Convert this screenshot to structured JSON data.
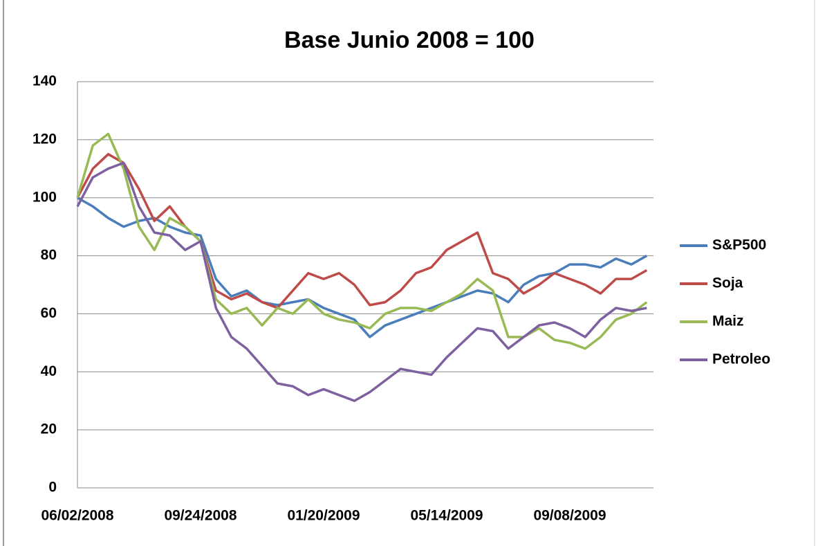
{
  "chart_data": {
    "type": "line",
    "title": "Base Junio 2008 = 100",
    "categories": [
      "06/02/2008",
      null,
      null,
      null,
      null,
      null,
      null,
      null,
      "09/24/2008",
      null,
      null,
      null,
      null,
      null,
      null,
      null,
      "01/20/2009",
      null,
      null,
      null,
      null,
      null,
      null,
      null,
      "05/14/2009",
      null,
      null,
      null,
      null,
      null,
      null,
      null,
      "09/08/2009",
      null,
      null,
      null,
      null,
      null
    ],
    "series": [
      {
        "name": "S&P500",
        "color": "#4a7ebb",
        "values": [
          100,
          97,
          93,
          90,
          92,
          93,
          90,
          88,
          87,
          72,
          66,
          68,
          64,
          63,
          64,
          65,
          62,
          60,
          58,
          52,
          56,
          58,
          60,
          62,
          64,
          66,
          68,
          67,
          64,
          70,
          73,
          74,
          77,
          77,
          76,
          79,
          77,
          80
        ]
      },
      {
        "name": "Soja",
        "color": "#be4b48",
        "values": [
          100,
          110,
          115,
          112,
          103,
          92,
          97,
          90,
          85,
          68,
          65,
          67,
          64,
          62,
          68,
          74,
          72,
          74,
          70,
          63,
          64,
          68,
          74,
          76,
          82,
          85,
          88,
          74,
          72,
          67,
          70,
          74,
          72,
          70,
          67,
          72,
          72,
          75
        ]
      },
      {
        "name": "Maiz",
        "color": "#98b954",
        "values": [
          100,
          118,
          122,
          110,
          90,
          82,
          93,
          90,
          85,
          65,
          60,
          62,
          56,
          62,
          60,
          65,
          60,
          58,
          57,
          55,
          60,
          62,
          62,
          61,
          64,
          67,
          72,
          68,
          52,
          52,
          55,
          51,
          50,
          48,
          52,
          58,
          60,
          64
        ]
      },
      {
        "name": "Petroleo",
        "color": "#7d60a0",
        "values": [
          97,
          107,
          110,
          112,
          97,
          88,
          87,
          82,
          85,
          62,
          52,
          48,
          42,
          36,
          35,
          32,
          34,
          32,
          30,
          33,
          37,
          41,
          40,
          39,
          45,
          50,
          55,
          54,
          48,
          52,
          56,
          57,
          55,
          52,
          58,
          62,
          61,
          62
        ]
      }
    ],
    "ylim": [
      0,
      140
    ],
    "yticks": [
      0,
      20,
      40,
      60,
      80,
      100,
      120,
      140
    ],
    "grid": true,
    "legend": "right"
  }
}
